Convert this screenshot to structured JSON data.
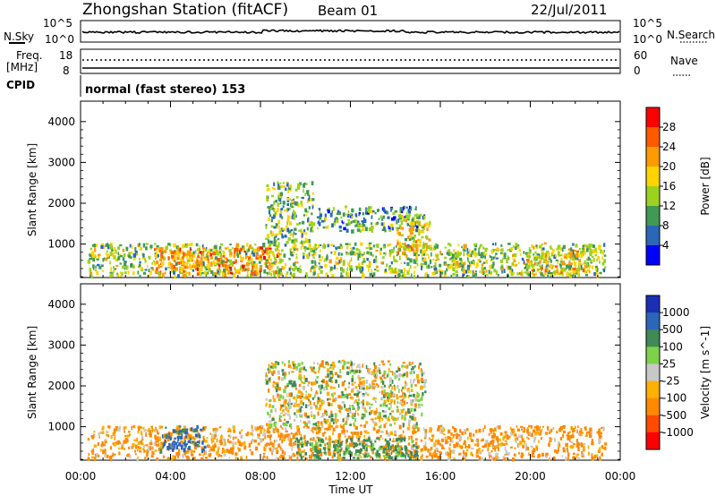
{
  "header": {
    "title": "Zhongshan Station (fitACF)",
    "beam": "Beam 01",
    "date": "22/Jul/2011"
  },
  "status_panels": {
    "noise": {
      "left_label": "N.Sky",
      "right_label": "N.Search",
      "left_ticks": [
        "10^5",
        "10^0"
      ],
      "right_ticks": [
        "10^5",
        "10^0"
      ]
    },
    "frequency": {
      "left_label_line1": "Freq.",
      "left_label_line2": "[MHz]",
      "right_label": "Nave",
      "left_ticks": [
        "18",
        "8"
      ],
      "right_ticks": [
        "60",
        "0"
      ]
    },
    "cpid": {
      "label": "CPID",
      "text": "normal (fast stereo) 153"
    }
  },
  "chart_data": [
    {
      "type": "heatmap",
      "name": "power",
      "ylabel": "Slant Range [km]",
      "ylim": [
        180,
        4500
      ],
      "yticks": [
        "4000",
        "3000",
        "2000",
        "1000"
      ],
      "colorbar": {
        "label": "Power [dB]",
        "ticks": [
          "28",
          "24",
          "20",
          "16",
          "12",
          "8",
          "4"
        ],
        "colors": [
          "#ff0000",
          "#ff5a00",
          "#ff9a00",
          "#ffd400",
          "#9bd21e",
          "#3f9a55",
          "#2a67b8",
          "#0000ff"
        ]
      },
      "echo_regions": [
        {
          "t0": 0.3,
          "t1": 23.3,
          "r0": 200,
          "r1": 1000,
          "level": 12
        },
        {
          "t0": 3.2,
          "t1": 8.8,
          "r0": 250,
          "r1": 900,
          "level": 20
        },
        {
          "t0": 8.2,
          "t1": 10.3,
          "r0": 1000,
          "r1": 2500,
          "level": 10
        },
        {
          "t0": 10.5,
          "t1": 15.3,
          "r0": 1300,
          "r1": 1900,
          "level": 8
        },
        {
          "t0": 14.0,
          "t1": 15.5,
          "r0": 700,
          "r1": 1700,
          "level": 16
        },
        {
          "t0": 16.5,
          "t1": 18.0,
          "r0": 300,
          "r1": 800,
          "level": 12
        },
        {
          "t0": 19.8,
          "t1": 22.5,
          "r0": 250,
          "r1": 800,
          "level": 16
        }
      ]
    },
    {
      "type": "heatmap",
      "name": "velocity",
      "ylabel": "Slant Range [km]",
      "ylim": [
        180,
        4500
      ],
      "yticks": [
        "4000",
        "3000",
        "2000",
        "1000"
      ],
      "colorbar": {
        "label": "Velocity [m s^-1]",
        "ticks": [
          "1000",
          "500",
          "100",
          "25",
          "-25",
          "-100",
          "-500",
          "-1000"
        ],
        "colors": [
          "#1a2fb4",
          "#2a67b8",
          "#3f8a55",
          "#7cd24a",
          "#c8c8c8",
          "#ffb000",
          "#ff8a00",
          "#ff4a00",
          "#ff0000"
        ]
      },
      "echo_regions": [
        {
          "t0": 0.3,
          "t1": 23.3,
          "r0": 200,
          "r1": 1000,
          "level": -150
        },
        {
          "t0": 3.5,
          "t1": 5.5,
          "r0": 400,
          "r1": 1000,
          "level": 600
        },
        {
          "t0": 9.5,
          "t1": 15.0,
          "r0": 200,
          "r1": 700,
          "level": 200
        },
        {
          "t0": 8.2,
          "t1": 15.3,
          "r0": 1000,
          "r1": 2600,
          "level": 0
        }
      ]
    }
  ],
  "x_axis": {
    "label": "Time UT",
    "ticks": [
      "00:00",
      "04:00",
      "08:00",
      "12:00",
      "16:00",
      "20:00",
      "00:00"
    ],
    "range_hours": [
      0,
      24
    ]
  }
}
